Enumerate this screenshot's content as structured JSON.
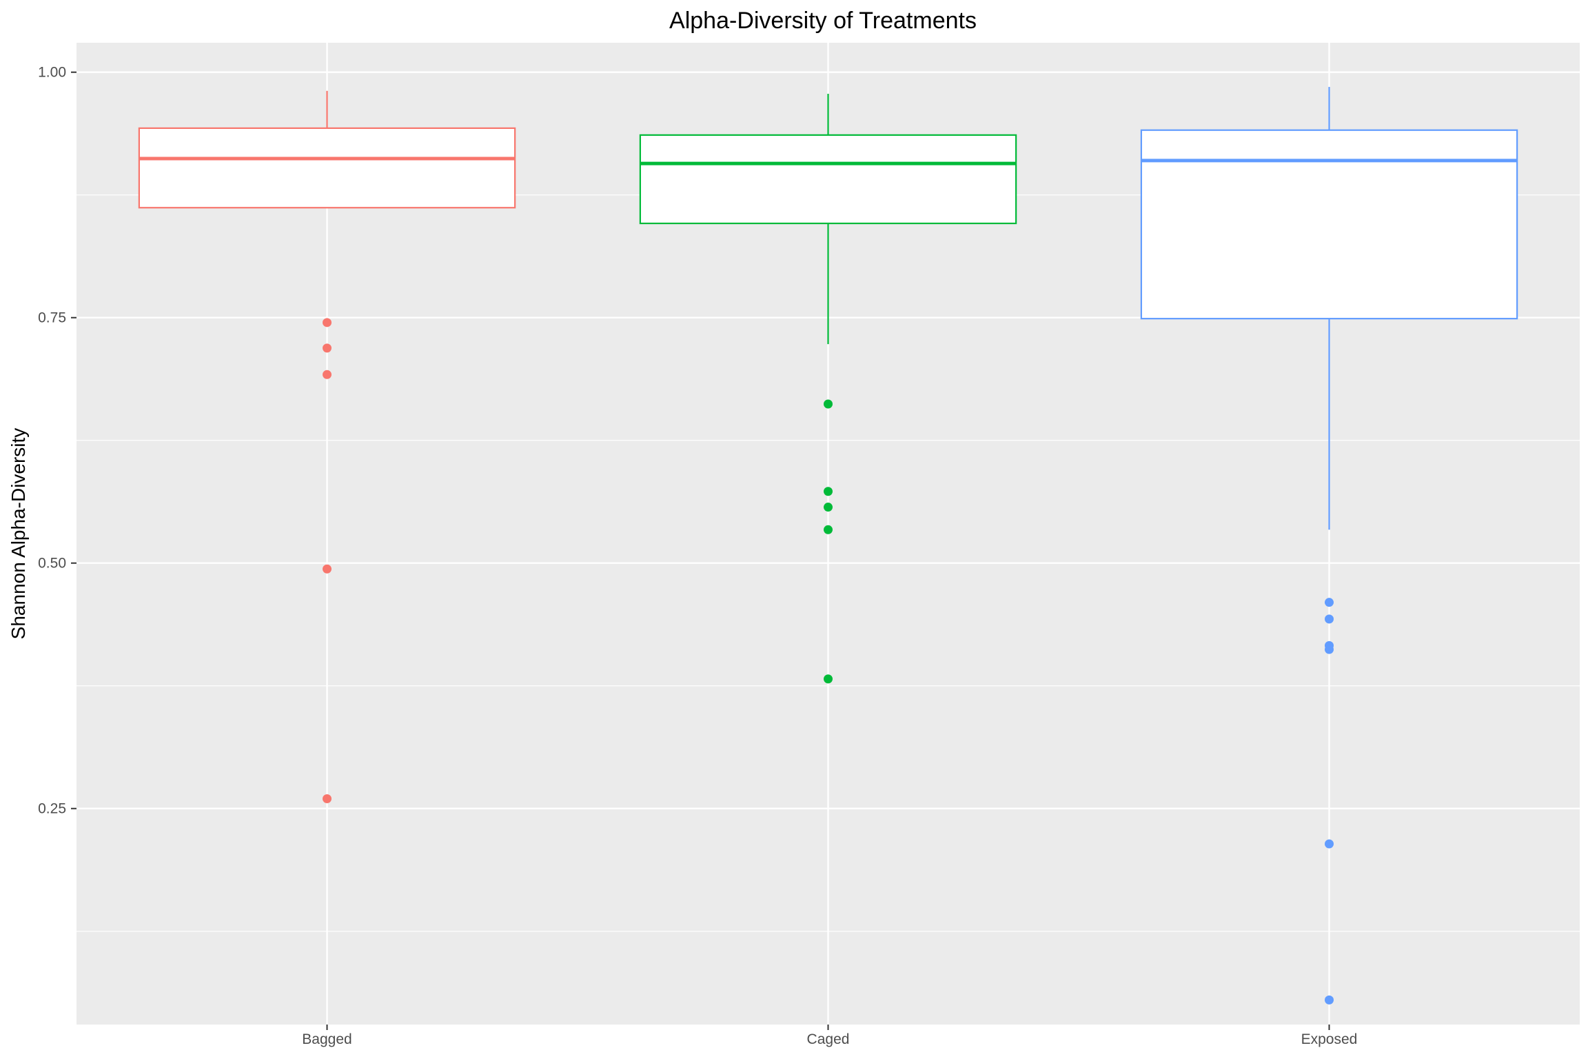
{
  "chart_data": {
    "type": "box",
    "title": "Alpha-Diversity of Treatments",
    "xlabel": "",
    "ylabel": "Shannon Alpha-Diversity",
    "ylim": [
      0.03,
      1.03
    ],
    "yticks": [
      0.25,
      0.5,
      0.75,
      1.0
    ],
    "ytick_labels": [
      "0.25",
      "0.50",
      "0.75",
      "1.00"
    ],
    "grid": true,
    "legend": "none",
    "categories": [
      "Bagged",
      "Caged",
      "Exposed"
    ],
    "boxes": [
      {
        "category": "Bagged",
        "color": "#F8766D",
        "whisker_low": 0.862,
        "q1": 0.862,
        "median": 0.912,
        "q3": 0.943,
        "whisker_high": 0.981,
        "outliers": [
          0.745,
          0.719,
          0.692,
          0.494,
          0.26
        ]
      },
      {
        "category": "Caged",
        "color": "#00BA38",
        "whisker_low": 0.723,
        "q1": 0.846,
        "median": 0.907,
        "q3": 0.936,
        "whisker_high": 0.978,
        "outliers": [
          0.662,
          0.573,
          0.557,
          0.534,
          0.382
        ]
      },
      {
        "category": "Exposed",
        "color": "#619CFF",
        "whisker_low": 0.534,
        "q1": 0.749,
        "median": 0.91,
        "q3": 0.941,
        "whisker_high": 0.985,
        "outliers": [
          0.46,
          0.443,
          0.416,
          0.412,
          0.214,
          0.055
        ]
      }
    ]
  }
}
